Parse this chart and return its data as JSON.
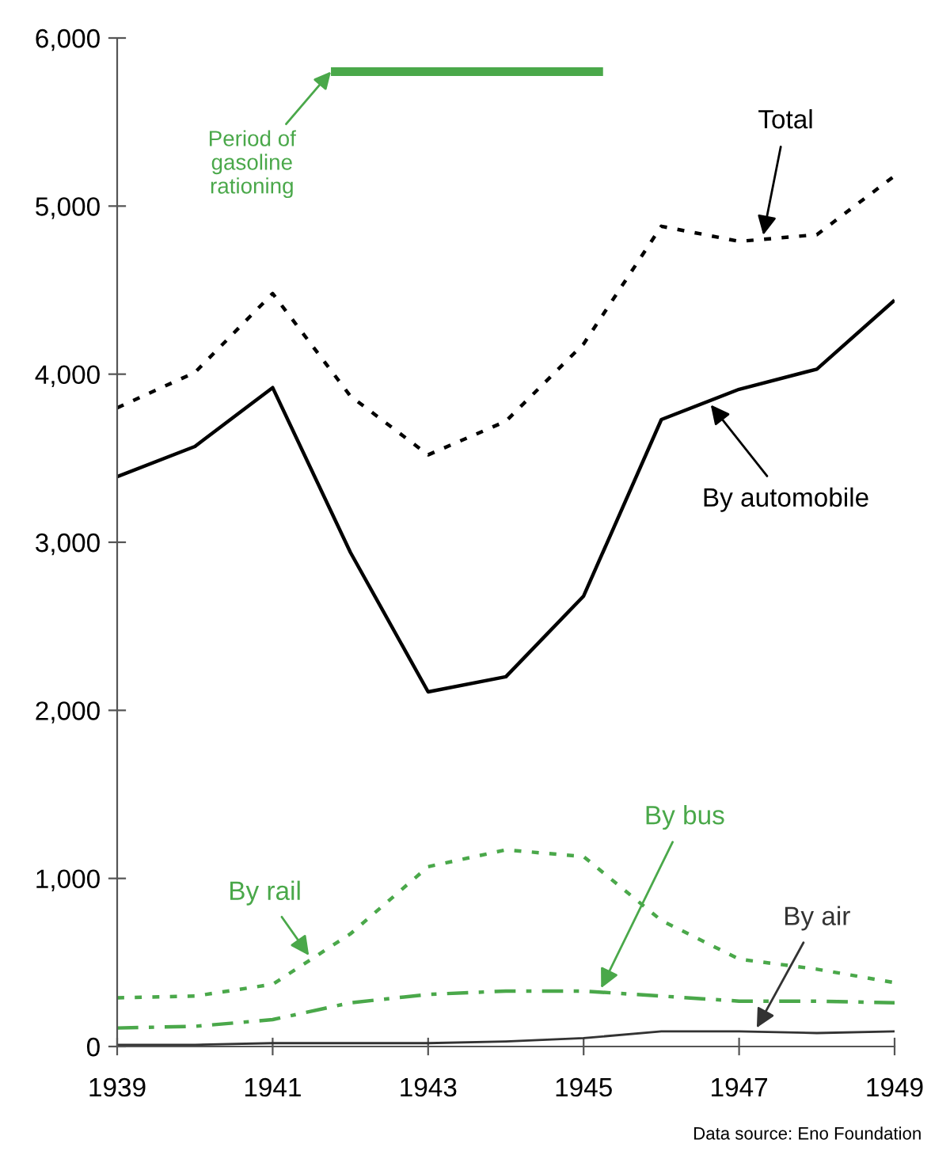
{
  "chart_data": {
    "type": "line",
    "x": [
      1939,
      1940,
      1941,
      1942,
      1943,
      1944,
      1945,
      1946,
      1947,
      1948,
      1949
    ],
    "series": [
      {
        "name": "Total",
        "color": "#000000",
        "line_style": "dotted",
        "values": [
          3800,
          4010,
          4480,
          3870,
          3520,
          3720,
          4180,
          4880,
          4790,
          4830,
          5180
        ]
      },
      {
        "name": "By automobile",
        "color": "#000000",
        "line_style": "solid",
        "values": [
          3390,
          3570,
          3920,
          2940,
          2110,
          2200,
          2680,
          3730,
          3910,
          4030,
          4440
        ]
      },
      {
        "name": "By rail",
        "color": "#4aa84a",
        "line_style": "dotted",
        "values": [
          290,
          300,
          370,
          670,
          1070,
          1170,
          1130,
          750,
          520,
          460,
          380
        ]
      },
      {
        "name": "By bus",
        "color": "#4aa84a",
        "line_style": "dashdot",
        "values": [
          110,
          120,
          160,
          260,
          310,
          330,
          330,
          300,
          270,
          270,
          260
        ]
      },
      {
        "name": "By air",
        "color": "#333333",
        "line_style": "solid",
        "values": [
          10,
          10,
          20,
          20,
          20,
          30,
          50,
          90,
          90,
          80,
          90
        ]
      },
      {
        "color": "#4aa84a",
        "line_style": "solid",
        "x": [
          1941.75,
          1945.25
        ],
        "values": [
          5800,
          5800
        ]
      }
    ],
    "xlim": [
      1939,
      1949
    ],
    "ylim": [
      0,
      6000
    ],
    "xticks": [
      1939,
      1941,
      1943,
      1945,
      1947,
      1949
    ],
    "yticks": [
      0,
      {
        "value": 1000,
        "label": "1,000"
      },
      {
        "value": 2000,
        "label": "2,000"
      },
      {
        "value": 3000,
        "label": "3,000"
      },
      {
        "value": 4000,
        "label": "4,000"
      },
      {
        "value": 5000,
        "label": "5,000"
      },
      {
        "value": 6000,
        "label": "6,000"
      }
    ],
    "annotations": [
      {
        "text": "Period of\ngasoline\nrationing",
        "x": 1941.75,
        "y": 5800
      },
      "Data source: Eno Foundation"
    ],
    "grid": false,
    "legend": false,
    "marker": "none"
  }
}
